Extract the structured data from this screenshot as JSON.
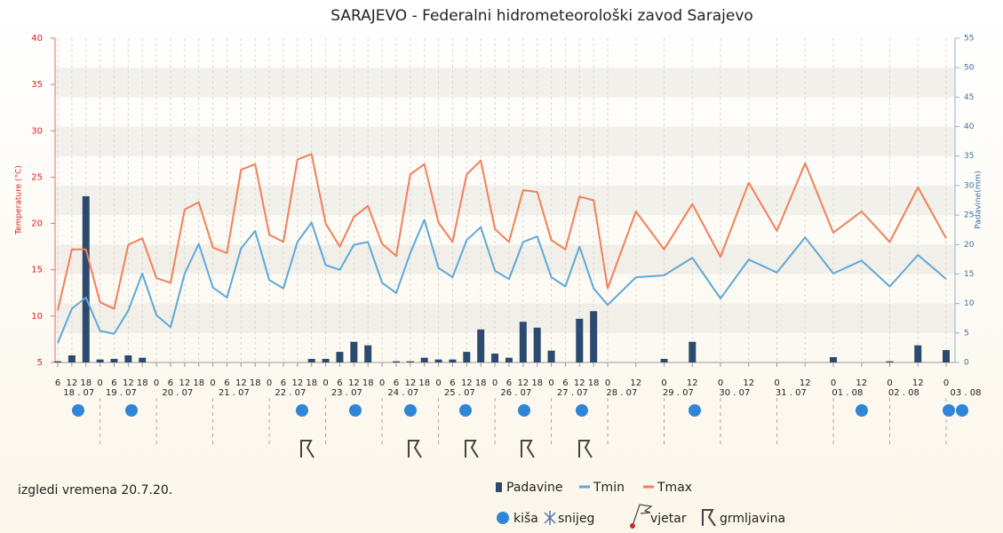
{
  "chart_data": {
    "type": "line",
    "title": "SARAJEVO - Federalni hidrometeorološki zavod Sarajevo",
    "note": "izgledi vremena 20.7.20.",
    "ylabel": "Temperature (°C)",
    "y2label": "Padavine(mm)",
    "categories": [
      "6",
      "12",
      "18",
      "0",
      "6",
      "12",
      "18",
      "0",
      "6",
      "12",
      "18",
      "0",
      "6",
      "12",
      "18",
      "0",
      "6",
      "12",
      "18",
      "0",
      "6",
      "12",
      "18",
      "0",
      "6",
      "12",
      "18",
      "0",
      "6",
      "12",
      "18",
      "0",
      "6",
      "12",
      "18",
      "0",
      "6",
      "12",
      "18",
      "0",
      "12",
      "0",
      "12",
      "0",
      "12",
      "0",
      "12",
      "0",
      "12",
      "0",
      "12",
      "0"
    ],
    "date_labels": [
      null,
      "18 . 07",
      null,
      null,
      "19 . 07",
      null,
      null,
      null,
      "20 . 07",
      null,
      null,
      null,
      "21 . 07",
      null,
      null,
      null,
      "22 . 07",
      null,
      null,
      null,
      "23 . 07",
      null,
      null,
      null,
      "24 . 07",
      null,
      null,
      null,
      "25 . 07",
      null,
      null,
      null,
      "26 . 07",
      null,
      null,
      null,
      "27 . 07",
      null,
      null,
      "28 . 07",
      null,
      "29 . 07",
      null,
      "30 . 07",
      null,
      "31 . 07",
      null,
      "01 . 08",
      null,
      "02 . 08",
      null,
      "03 . 08"
    ],
    "ylim": [
      5,
      40
    ],
    "yticks": [
      5,
      10,
      15,
      20,
      25,
      30,
      35,
      40
    ],
    "y2lim": [
      0,
      55
    ],
    "y2ticks": [
      0,
      5,
      10,
      15,
      20,
      25,
      30,
      35,
      40,
      45,
      50,
      55
    ],
    "grid": true,
    "series": [
      {
        "name": "Padavine",
        "type": "bar",
        "axis": "y2",
        "color": "#2c4a6e",
        "values": [
          0.2,
          1.2,
          28.2,
          0.5,
          0.6,
          1.2,
          0.8,
          0,
          0,
          0,
          0,
          0,
          0,
          0,
          0,
          0,
          0,
          0,
          0.6,
          0.6,
          1.8,
          3.5,
          2.9,
          0,
          0.2,
          0.2,
          0.8,
          0.5,
          0.5,
          1.8,
          5.6,
          1.5,
          0.8,
          6.9,
          5.9,
          2.0,
          0,
          7.4,
          8.7,
          0,
          0,
          0.6,
          3.5,
          0,
          0,
          0,
          0,
          0.9,
          0,
          0.2,
          2.9,
          2.1
        ]
      },
      {
        "name": "Tmin",
        "type": "line",
        "color": "#5ea9d6",
        "values": [
          7.1,
          10.8,
          12.0,
          8.4,
          8.1,
          10.6,
          14.6,
          10.1,
          8.8,
          14.6,
          17.8,
          13.1,
          12.0,
          17.3,
          19.2,
          13.9,
          13.0,
          18.0,
          20.1,
          15.5,
          15.0,
          17.7,
          18.0,
          13.6,
          12.5,
          16.8,
          20.4,
          15.2,
          14.2,
          18.2,
          19.6,
          14.9,
          14.0,
          18.0,
          18.6,
          14.2,
          13.2,
          17.5,
          13.0,
          11.2,
          14.2,
          14.4,
          16.3,
          11.9,
          16.1,
          14.7,
          18.5,
          14.6,
          16.0,
          13.2,
          16.6,
          14.0
        ]
      },
      {
        "name": "Tmax",
        "type": "line",
        "color": "#f0805a",
        "values": [
          10.6,
          17.2,
          17.2,
          11.5,
          10.8,
          17.7,
          18.4,
          14.1,
          13.6,
          21.5,
          22.3,
          17.4,
          16.8,
          25.8,
          26.4,
          18.8,
          18.0,
          26.9,
          27.5,
          20.0,
          17.5,
          20.7,
          21.9,
          17.8,
          16.5,
          25.3,
          26.4,
          20.1,
          18.0,
          25.3,
          26.8,
          19.4,
          18.0,
          23.6,
          23.4,
          18.2,
          17.2,
          22.9,
          22.5,
          13.0,
          21.3,
          17.2,
          22.1,
          16.4,
          24.4,
          19.2,
          26.5,
          19.0,
          21.3,
          18.0,
          23.9,
          18.4
        ]
      }
    ],
    "symbol_legend": [
      "kiša",
      "snijeg",
      "vjetar",
      "grmljavina"
    ]
  }
}
